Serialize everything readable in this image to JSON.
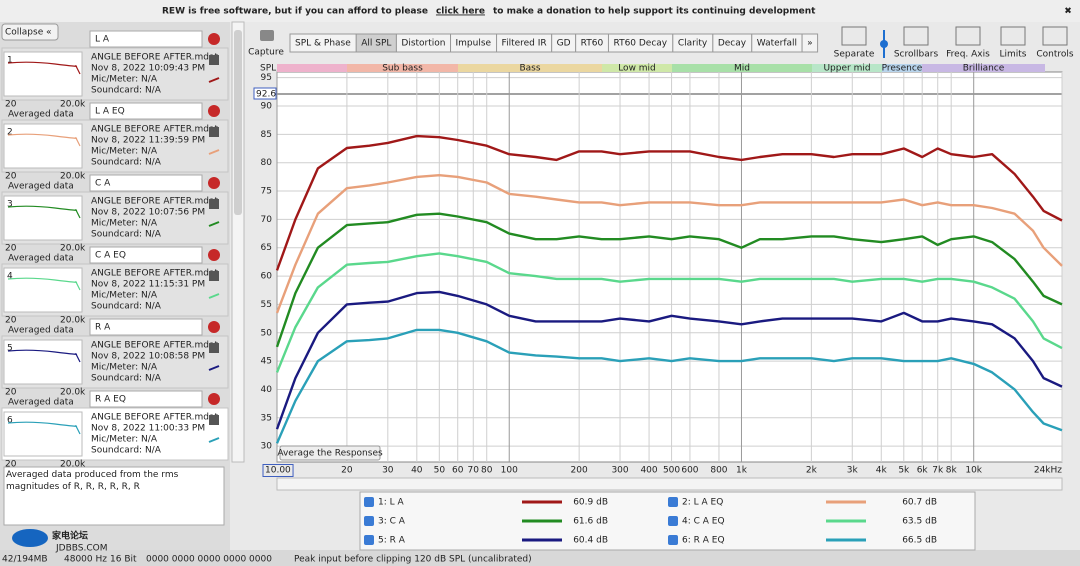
{
  "banner": {
    "text_before": "REW is free software, but if you can afford to please",
    "link": "click here",
    "text_after": "to make a donation to help support its continuing development",
    "close": "✖"
  },
  "sidebar": {
    "collapse": "Collapse",
    "collapse_icon": "«",
    "measurements": [
      {
        "number": "1",
        "name": "L A",
        "file": "ANGLE BEFORE AFTER.mdat",
        "date": "Nov 8, 2022 10:09:43 PM",
        "mic": "Mic/Meter: N/A",
        "soundcard": "Soundcard: N/A",
        "axis_min": "20",
        "axis_max": "20.0k",
        "caption": "Averaged data",
        "color": "#a01818"
      },
      {
        "number": "2",
        "name": "L A EQ",
        "file": "ANGLE BEFORE AFTER.mdat",
        "date": "Nov 8, 2022 11:39:59 PM",
        "mic": "Mic/Meter: N/A",
        "soundcard": "Soundcard: N/A",
        "axis_min": "20",
        "axis_max": "20.0k",
        "caption": "Averaged data",
        "color": "#e8a07a"
      },
      {
        "number": "3",
        "name": "C A",
        "file": "ANGLE BEFORE AFTER.mdat",
        "date": "Nov 8, 2022 10:07:56 PM",
        "mic": "Mic/Meter: N/A",
        "soundcard": "Soundcard: N/A",
        "axis_min": "20",
        "axis_max": "20.0k",
        "caption": "Averaged data",
        "color": "#228b22"
      },
      {
        "number": "4",
        "name": "C A EQ",
        "file": "ANGLE BEFORE AFTER.mdat",
        "date": "Nov 8, 2022 11:15:31 PM",
        "mic": "Mic/Meter: N/A",
        "soundcard": "Soundcard: N/A",
        "axis_min": "20",
        "axis_max": "20.0k",
        "caption": "Averaged data",
        "color": "#5ad88c"
      },
      {
        "number": "5",
        "name": "R A",
        "file": "ANGLE BEFORE AFTER.mdat",
        "date": "Nov 8, 2022 10:08:58 PM",
        "mic": "Mic/Meter: N/A",
        "soundcard": "Soundcard: N/A",
        "axis_min": "20",
        "axis_max": "20.0k",
        "caption": "Averaged data",
        "color": "#1a1a80"
      },
      {
        "number": "6",
        "name": "R A EQ",
        "file": "ANGLE BEFORE AFTER.mdat",
        "date": "Nov 8, 2022 11:00:33 PM",
        "mic": "Mic/Meter: N/A",
        "soundcard": "Soundcard: N/A",
        "axis_min": "20",
        "axis_max": "20.0k",
        "caption": "Averaged data",
        "color": "#2aa0b8"
      }
    ],
    "notes": "Averaged data produced from the rms magnitudes of R, R, R, R, R, R"
  },
  "toolbar": {
    "capture": "Capture",
    "tabs": [
      "SPL & Phase",
      "All SPL",
      "Distortion",
      "Impulse",
      "Filtered IR",
      "GD",
      "RT60",
      "RT60 Decay",
      "Clarity",
      "Decay",
      "Waterfall",
      "»"
    ],
    "active_tab": 1,
    "controls": [
      "Separate",
      "Scrollbars",
      "Freq. Axis",
      "Limits",
      "Controls"
    ]
  },
  "chart_data": {
    "type": "line",
    "y_label": "SPL",
    "cursor_value": "92.6",
    "button": "Average the Responses",
    "bands": [
      "Sub bass",
      "Bass",
      "Low mid",
      "Mid",
      "Upper mid",
      "Presence",
      "Brilliance"
    ],
    "log_x": true,
    "grid": true,
    "x": [
      10,
      12,
      15,
      20,
      25,
      30,
      40,
      50,
      60,
      80,
      100,
      130,
      160,
      200,
      250,
      300,
      400,
      500,
      600,
      800,
      1000,
      1200,
      1500,
      2000,
      2500,
      3000,
      4000,
      5000,
      6000,
      7000,
      8000,
      10000,
      12000,
      15000,
      18000,
      20000,
      24000
    ],
    "xlim": [
      10,
      24000
    ],
    "ylim": [
      27.2,
      96
    ],
    "xticks": [
      {
        "value": 10,
        "label": "10.00"
      },
      20,
      30,
      40,
      50,
      60,
      70,
      80,
      100,
      200,
      300,
      400,
      500,
      600,
      800,
      {
        "value": 1000,
        "label": "1k"
      },
      {
        "value": 2000,
        "label": "2k"
      },
      {
        "value": 3000,
        "label": "3k"
      },
      {
        "value": 4000,
        "label": "4k"
      },
      {
        "value": 5000,
        "label": "5k"
      },
      {
        "value": 6000,
        "label": "6k"
      },
      {
        "value": 7000,
        "label": "7k"
      },
      {
        "value": 8000,
        "label": "8k"
      },
      {
        "value": 10000,
        "label": "10k"
      },
      {
        "value": 24000,
        "label": "24kHz"
      }
    ],
    "yticks": [
      30,
      35,
      40,
      45,
      50,
      55,
      60,
      65,
      70,
      75,
      80,
      85,
      90,
      95
    ],
    "series": [
      {
        "name": "1: L A",
        "color": "#a01818",
        "level": "60.9 dB",
        "values": [
          61,
          70,
          79,
          82.6,
          83,
          83.5,
          84.7,
          84.5,
          84,
          83,
          81.5,
          81,
          80.5,
          82,
          82,
          81.5,
          82,
          82,
          82,
          81,
          80.5,
          81,
          81.5,
          81.5,
          81,
          81.5,
          81.5,
          82.5,
          81,
          82.5,
          81.5,
          81,
          81.5,
          78,
          74,
          71.5,
          69.8
        ]
      },
      {
        "name": "2: L A EQ",
        "color": "#e8a07a",
        "level": "60.7 dB",
        "values": [
          53.5,
          62,
          71,
          75.5,
          76,
          76.5,
          77.5,
          77.8,
          77.5,
          76.5,
          74.5,
          74,
          73.5,
          73,
          73,
          72.5,
          73,
          73,
          73,
          72.5,
          72.5,
          73,
          73,
          73,
          73,
          73,
          73,
          73.5,
          72.5,
          73,
          72.5,
          72.5,
          72,
          71,
          68,
          65,
          61.8
        ]
      },
      {
        "name": "3: C A",
        "color": "#228b22",
        "level": "61.6 dB",
        "values": [
          47.5,
          57,
          65,
          69,
          69.3,
          69.5,
          70.8,
          71,
          70.5,
          69.5,
          67.5,
          66.5,
          66.5,
          67,
          66.5,
          66.5,
          67,
          66.5,
          67,
          66.5,
          65,
          66.5,
          66.5,
          67,
          67,
          66.5,
          66,
          66.5,
          67,
          65.5,
          66.5,
          67,
          66,
          63,
          59,
          56.5,
          55
        ]
      },
      {
        "name": "4: C A EQ",
        "color": "#5ad88c",
        "level": "63.5 dB",
        "values": [
          43,
          51,
          58,
          62,
          62.3,
          62.5,
          63.5,
          64,
          63.5,
          62.5,
          60.5,
          60,
          59.5,
          59.5,
          59.5,
          59,
          59.5,
          59.5,
          59.5,
          59.5,
          59,
          59.5,
          59.5,
          59.5,
          59.5,
          59,
          59.5,
          59.5,
          59,
          59.5,
          59.5,
          59,
          58,
          56,
          52,
          49,
          47.3
        ]
      },
      {
        "name": "5: R A",
        "color": "#1a1a80",
        "level": "60.4 dB",
        "values": [
          33,
          42,
          50,
          55,
          55.3,
          55.5,
          57,
          57.2,
          56.5,
          55,
          53,
          52,
          52,
          52,
          52,
          52.5,
          52,
          53,
          52.5,
          52,
          51.5,
          52,
          52.5,
          52.5,
          52.5,
          52.5,
          52,
          53.5,
          52,
          52,
          52.5,
          52,
          51.5,
          49,
          45,
          42,
          40.5
        ]
      },
      {
        "name": "6: R A EQ",
        "color": "#2aa0b8",
        "level": "66.5 dB",
        "values": [
          30.5,
          38,
          45,
          48.5,
          48.7,
          49,
          50.5,
          50.5,
          50,
          48.5,
          46.5,
          46,
          45.8,
          45.5,
          45.5,
          45,
          45.5,
          45,
          45.5,
          45,
          45,
          45.5,
          45.5,
          45.5,
          45,
          45.5,
          45.5,
          45,
          45,
          45,
          45.5,
          44.5,
          43,
          40,
          36,
          34,
          32.8
        ]
      }
    ]
  },
  "status_bar": {
    "memory": "42/194MB",
    "rate": "48000 Hz",
    "bits": "16 Bit",
    "meters": "0000 0000 0000 0000 0000",
    "message": "Peak input before clipping 120 dB SPL (uncalibrated)"
  },
  "watermark": {
    "title": "家电论坛",
    "url": "JDBBS.COM"
  }
}
